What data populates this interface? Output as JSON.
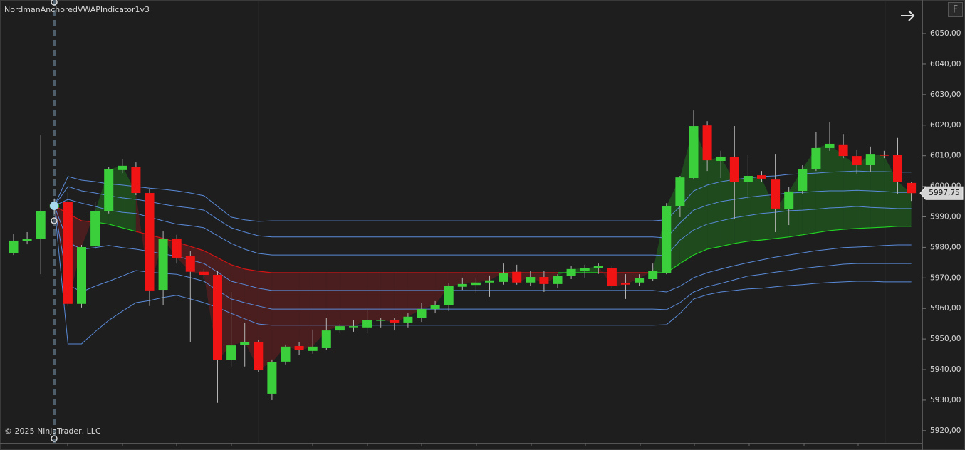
{
  "chart_data": {
    "type": "candlestick",
    "title": "NordmanAnchoredVWAPIndicator1v3",
    "copyright": "© 2025 NinjaTrader, LLC",
    "button_label": "F",
    "ylim": [
      5916,
      6060.5
    ],
    "yticks": [
      {
        "value": 6050,
        "label": "6050,00"
      },
      {
        "value": 6040,
        "label": "6040,00"
      },
      {
        "value": 6030,
        "label": "6030,00"
      },
      {
        "value": 6020,
        "label": "6020,00"
      },
      {
        "value": 6010,
        "label": "6010,00"
      },
      {
        "value": 6000,
        "label": "6000,00"
      },
      {
        "value": 5990,
        "label": "5990,00"
      },
      {
        "value": 5980,
        "label": "5980,00"
      },
      {
        "value": 5970,
        "label": "5970,00"
      },
      {
        "value": 5960,
        "label": "5960,00"
      },
      {
        "value": 5950,
        "label": "5950,00"
      },
      {
        "value": 5940,
        "label": "5940,00"
      },
      {
        "value": 5930,
        "label": "5930,00"
      },
      {
        "value": 5920,
        "label": "5920,00"
      }
    ],
    "grid": false,
    "up_color": "#3ccf3c",
    "down_color": "#f01414",
    "wick_color": "#b4b4b4",
    "last_price": {
      "value": 5997.75,
      "label": "5997,75"
    },
    "open": [
      5978.0,
      5982.0,
      5982.7,
      5993.0,
      5995.0,
      5961.5,
      5980.3,
      5991.8,
      6005.3,
      6006.2,
      5997.8,
      5966.1,
      5982.9,
      5977.1,
      5972.0,
      5971.0,
      5943.1,
      5948.0,
      5949.1,
      5932.1,
      5942.6,
      5947.7,
      5946.1,
      5947.0,
      5952.8,
      5953.9,
      5953.8,
      5956.0,
      5956.1,
      5955.4,
      5957.0,
      5959.8,
      5961.2,
      5967.1,
      5967.7,
      5968.5,
      5968.7,
      5972.0,
      5968.5,
      5970.3,
      5968.0,
      5970.6,
      5972.4,
      5973.1,
      5973.3,
      5968.4,
      5968.5,
      5969.6,
      5971.7,
      5993.4,
      6002.7,
      6019.9,
      6008.3,
      6009.7,
      6001.3,
      6003.6,
      6002.2,
      5992.5,
      5998.5,
      6005.7,
      6012.5,
      6013.7,
      6009.9,
      6006.9,
      6010.4,
      6010.2,
      6001.1
    ],
    "high": [
      5984.5,
      5985.0,
      6016.7,
      5996.0,
      5998.0,
      5980.8,
      5995.0,
      6006.2,
      6008.8,
      6007.8,
      5999.2,
      5985.2,
      5984.1,
      5978.9,
      5972.9,
      5972.4,
      5965.4,
      5955.4,
      5949.6,
      5943.3,
      5948.2,
      5949.1,
      5953.1,
      5956.8,
      5954.9,
      5956.3,
      5959.6,
      5956.8,
      5956.8,
      5958.4,
      5961.9,
      5962.4,
      5968.2,
      5970.1,
      5970.1,
      5970.8,
      5974.7,
      5974.3,
      5972.4,
      5972.4,
      5971.2,
      5974.0,
      5974.3,
      5974.7,
      5973.8,
      5971.2,
      5971.2,
      5974.7,
      5994.5,
      6003.4,
      6024.8,
      6021.3,
      6011.6,
      6019.7,
      6010.2,
      6005.0,
      6010.6,
      5999.9,
      6006.9,
      6017.8,
      6020.9,
      6017.1,
      6012.0,
      6013.0,
      6011.6,
      6015.8,
      6001.5
    ],
    "low": [
      5977.5,
      5981.0,
      5971.2,
      5991.0,
      5960.8,
      5960.3,
      5979.4,
      5991.1,
      6004.3,
      5997.1,
      5960.8,
      5961.2,
      5974.7,
      5949.1,
      5969.6,
      5929.1,
      5941.0,
      5941.0,
      5939.3,
      5930.0,
      5941.7,
      5944.9,
      5945.2,
      5946.3,
      5951.9,
      5952.4,
      5952.1,
      5953.8,
      5952.8,
      5953.8,
      5955.6,
      5958.4,
      5959.1,
      5966.1,
      5965.0,
      5963.8,
      5967.8,
      5967.8,
      5967.3,
      5965.4,
      5966.6,
      5969.6,
      5970.1,
      5971.3,
      5966.8,
      5963.1,
      5967.3,
      5968.9,
      5971.2,
      5989.9,
      6002.2,
      6005.0,
      6002.7,
      5989.2,
      5995.7,
      6001.3,
      5985.0,
      5987.3,
      5997.6,
      6005.0,
      6011.6,
      6009.2,
      6003.9,
      6004.6,
      6009.2,
      5997.6,
      5995.2
    ],
    "close": [
      5982.2,
      5982.7,
      5991.8,
      5994.0,
      5961.5,
      5980.1,
      5991.8,
      6005.5,
      6006.7,
      5997.8,
      5965.9,
      5982.9,
      5976.6,
      5972.0,
      5971.0,
      5943.1,
      5947.9,
      5949.1,
      5940.0,
      5942.4,
      5947.5,
      5946.3,
      5947.5,
      5952.8,
      5954.2,
      5954.2,
      5956.3,
      5956.3,
      5955.4,
      5957.3,
      5959.8,
      5961.2,
      5967.3,
      5968.0,
      5968.5,
      5969.2,
      5971.7,
      5968.5,
      5970.3,
      5968.0,
      5970.6,
      5972.9,
      5973.1,
      5973.8,
      5967.3,
      5967.8,
      5969.9,
      5972.2,
      5993.4,
      6002.9,
      6019.7,
      6008.5,
      6009.7,
      6001.5,
      6003.4,
      6002.5,
      5992.7,
      5998.3,
      6005.7,
      6012.5,
      6013.9,
      6009.9,
      6006.9,
      6010.6,
      6010.0,
      6001.5,
      5997.75
    ],
    "vwap": {
      "up_color": "#22d422",
      "down_color": "#d41414",
      "fill_up_color": "#1f5a1f",
      "fill_down_color": "#5a1f1f",
      "values": [
        null,
        null,
        null,
        5993.6,
        5991.1,
        5988.7,
        5988.3,
        5987.6,
        5986.4,
        5985.2,
        5984.1,
        5982.9,
        5981.7,
        5980.3,
        5978.9,
        5976.6,
        5974.3,
        5972.9,
        5972.2,
        5971.7,
        5971.7,
        5971.7,
        5971.7,
        5971.7,
        5971.7,
        5971.7,
        5971.7,
        5971.7,
        5971.7,
        5971.7,
        5971.7,
        5971.7,
        5971.7,
        5971.7,
        5971.7,
        5971.7,
        5971.7,
        5971.7,
        5971.7,
        5971.7,
        5971.7,
        5971.7,
        5971.7,
        5971.7,
        5971.7,
        5971.7,
        5971.7,
        5971.7,
        5971.7,
        5974.7,
        5977.5,
        5979.4,
        5980.3,
        5981.3,
        5982.0,
        5982.4,
        5982.9,
        5983.4,
        5984.1,
        5984.8,
        5985.5,
        5985.9,
        5986.2,
        5986.4,
        5986.6,
        5986.9,
        5986.9
      ]
    },
    "bands": [
      {
        "color": "#5a8ad8",
        "values": [
          null,
          null,
          null,
          5993.6,
          6003.2,
          6002.0,
          6001.5,
          6000.8,
          6000.4,
          5999.9,
          5999.4,
          5999.0,
          5998.5,
          5997.8,
          5996.9,
          5993.4,
          5989.9,
          5989.0,
          5988.5,
          5988.7,
          5988.7,
          5988.7,
          5988.7,
          5988.7,
          5988.7,
          5988.7,
          5988.7,
          5988.7,
          5988.7,
          5988.7,
          5988.7,
          5988.7,
          5988.7,
          5988.7,
          5988.7,
          5988.7,
          5988.7,
          5988.7,
          5988.7,
          5988.7,
          5988.7,
          5988.7,
          5988.7,
          5988.7,
          5988.7,
          5988.7,
          5988.7,
          5988.7,
          5989.0,
          5993.4,
          5998.5,
          6000.4,
          6001.5,
          6002.2,
          6002.7,
          6003.2,
          6003.4,
          6003.9,
          6004.1,
          6004.3,
          6004.6,
          6004.8,
          6005.0,
          6004.8,
          6004.8,
          6004.6,
          6004.6
        ]
      },
      {
        "color": "#5a8ad8",
        "values": [
          null,
          null,
          null,
          5993.6,
          5999.9,
          5998.5,
          5997.8,
          5996.9,
          5996.2,
          5995.7,
          5995.0,
          5994.1,
          5993.4,
          5992.9,
          5992.2,
          5989.2,
          5986.4,
          5985.0,
          5983.8,
          5983.4,
          5983.4,
          5983.4,
          5983.4,
          5983.4,
          5983.4,
          5983.4,
          5983.4,
          5983.4,
          5983.4,
          5983.4,
          5983.4,
          5983.4,
          5983.4,
          5983.4,
          5983.4,
          5983.4,
          5983.4,
          5983.4,
          5983.4,
          5983.4,
          5983.4,
          5983.4,
          5983.4,
          5983.4,
          5983.4,
          5983.4,
          5983.4,
          5983.4,
          5983.1,
          5988.0,
          5992.2,
          5993.8,
          5995.0,
          5995.7,
          5996.4,
          5996.9,
          5997.3,
          5997.8,
          5998.0,
          5998.3,
          5998.5,
          5998.5,
          5998.7,
          5998.5,
          5998.3,
          5998.0,
          5998.0
        ]
      },
      {
        "color": "#5a8ad8",
        "values": [
          null,
          null,
          null,
          5993.6,
          5995.7,
          5994.5,
          5993.4,
          5992.2,
          5991.5,
          5991.1,
          5989.9,
          5988.7,
          5987.6,
          5987.1,
          5986.4,
          5983.8,
          5981.3,
          5979.4,
          5978.0,
          5977.5,
          5977.5,
          5977.5,
          5977.5,
          5977.5,
          5977.5,
          5977.5,
          5977.5,
          5977.5,
          5977.5,
          5977.5,
          5977.5,
          5977.5,
          5977.5,
          5977.5,
          5977.5,
          5977.5,
          5977.5,
          5977.5,
          5977.5,
          5977.5,
          5977.5,
          5977.5,
          5977.5,
          5977.5,
          5977.5,
          5977.5,
          5977.5,
          5977.5,
          5977.3,
          5982.4,
          5985.7,
          5987.6,
          5988.7,
          5989.7,
          5990.4,
          5991.1,
          5991.5,
          5992.0,
          5992.2,
          5992.5,
          5992.9,
          5993.1,
          5993.4,
          5993.1,
          5992.9,
          5992.7,
          5992.7
        ]
      },
      {
        "color": "#5a8ad8",
        "values": [
          null,
          null,
          null,
          5993.6,
          5981.7,
          5979.4,
          5979.9,
          5980.6,
          5979.9,
          5979.4,
          5978.7,
          5977.8,
          5977.1,
          5975.9,
          5974.7,
          5971.9,
          5968.9,
          5967.8,
          5966.6,
          5965.9,
          5965.9,
          5965.9,
          5965.9,
          5965.9,
          5965.9,
          5965.9,
          5965.9,
          5965.9,
          5965.9,
          5965.9,
          5965.9,
          5965.9,
          5965.9,
          5965.9,
          5965.9,
          5965.9,
          5965.9,
          5965.9,
          5965.9,
          5965.9,
          5965.9,
          5965.9,
          5965.9,
          5965.9,
          5965.9,
          5965.9,
          5965.9,
          5965.9,
          5965.4,
          5967.3,
          5970.1,
          5971.7,
          5972.9,
          5974.0,
          5975.0,
          5975.9,
          5976.8,
          5977.5,
          5978.2,
          5978.9,
          5979.4,
          5979.9,
          5980.1,
          5980.3,
          5980.6,
          5980.8,
          5980.8
        ]
      },
      {
        "color": "#5a8ad8",
        "values": [
          null,
          null,
          null,
          5993.6,
          5967.8,
          5965.4,
          5967.3,
          5968.9,
          5970.6,
          5972.4,
          5971.9,
          5971.5,
          5971.2,
          5970.1,
          5968.9,
          5965.9,
          5963.1,
          5961.9,
          5960.8,
          5959.8,
          5959.8,
          5959.8,
          5959.8,
          5959.8,
          5959.8,
          5959.8,
          5959.8,
          5959.8,
          5959.8,
          5959.8,
          5959.8,
          5959.8,
          5959.8,
          5959.8,
          5959.8,
          5959.8,
          5959.8,
          5959.8,
          5959.8,
          5959.8,
          5959.8,
          5959.8,
          5959.8,
          5959.8,
          5959.8,
          5959.8,
          5959.8,
          5959.8,
          5959.6,
          5961.9,
          5965.4,
          5967.1,
          5968.2,
          5969.4,
          5970.6,
          5971.2,
          5971.9,
          5972.4,
          5973.1,
          5973.6,
          5974.0,
          5974.5,
          5974.7,
          5974.7,
          5974.7,
          5974.7,
          5974.7
        ]
      },
      {
        "color": "#5a8ad8",
        "values": [
          null,
          null,
          null,
          5993.6,
          5948.4,
          5948.4,
          5952.4,
          5956.1,
          5959.1,
          5961.9,
          5962.6,
          5963.6,
          5964.3,
          5963.1,
          5961.9,
          5960.3,
          5958.4,
          5956.6,
          5954.9,
          5954.5,
          5954.5,
          5954.5,
          5954.5,
          5954.5,
          5954.5,
          5954.5,
          5954.5,
          5954.5,
          5954.5,
          5954.5,
          5954.5,
          5954.5,
          5954.5,
          5954.5,
          5954.5,
          5954.5,
          5954.5,
          5954.5,
          5954.5,
          5954.5,
          5954.5,
          5954.5,
          5954.5,
          5954.5,
          5954.5,
          5954.5,
          5954.5,
          5954.5,
          5954.7,
          5958.4,
          5963.1,
          5964.5,
          5965.4,
          5965.9,
          5966.4,
          5966.6,
          5967.1,
          5967.5,
          5967.8,
          5968.2,
          5968.5,
          5968.7,
          5968.9,
          5968.9,
          5968.7,
          5968.7,
          5968.7
        ]
      }
    ]
  }
}
